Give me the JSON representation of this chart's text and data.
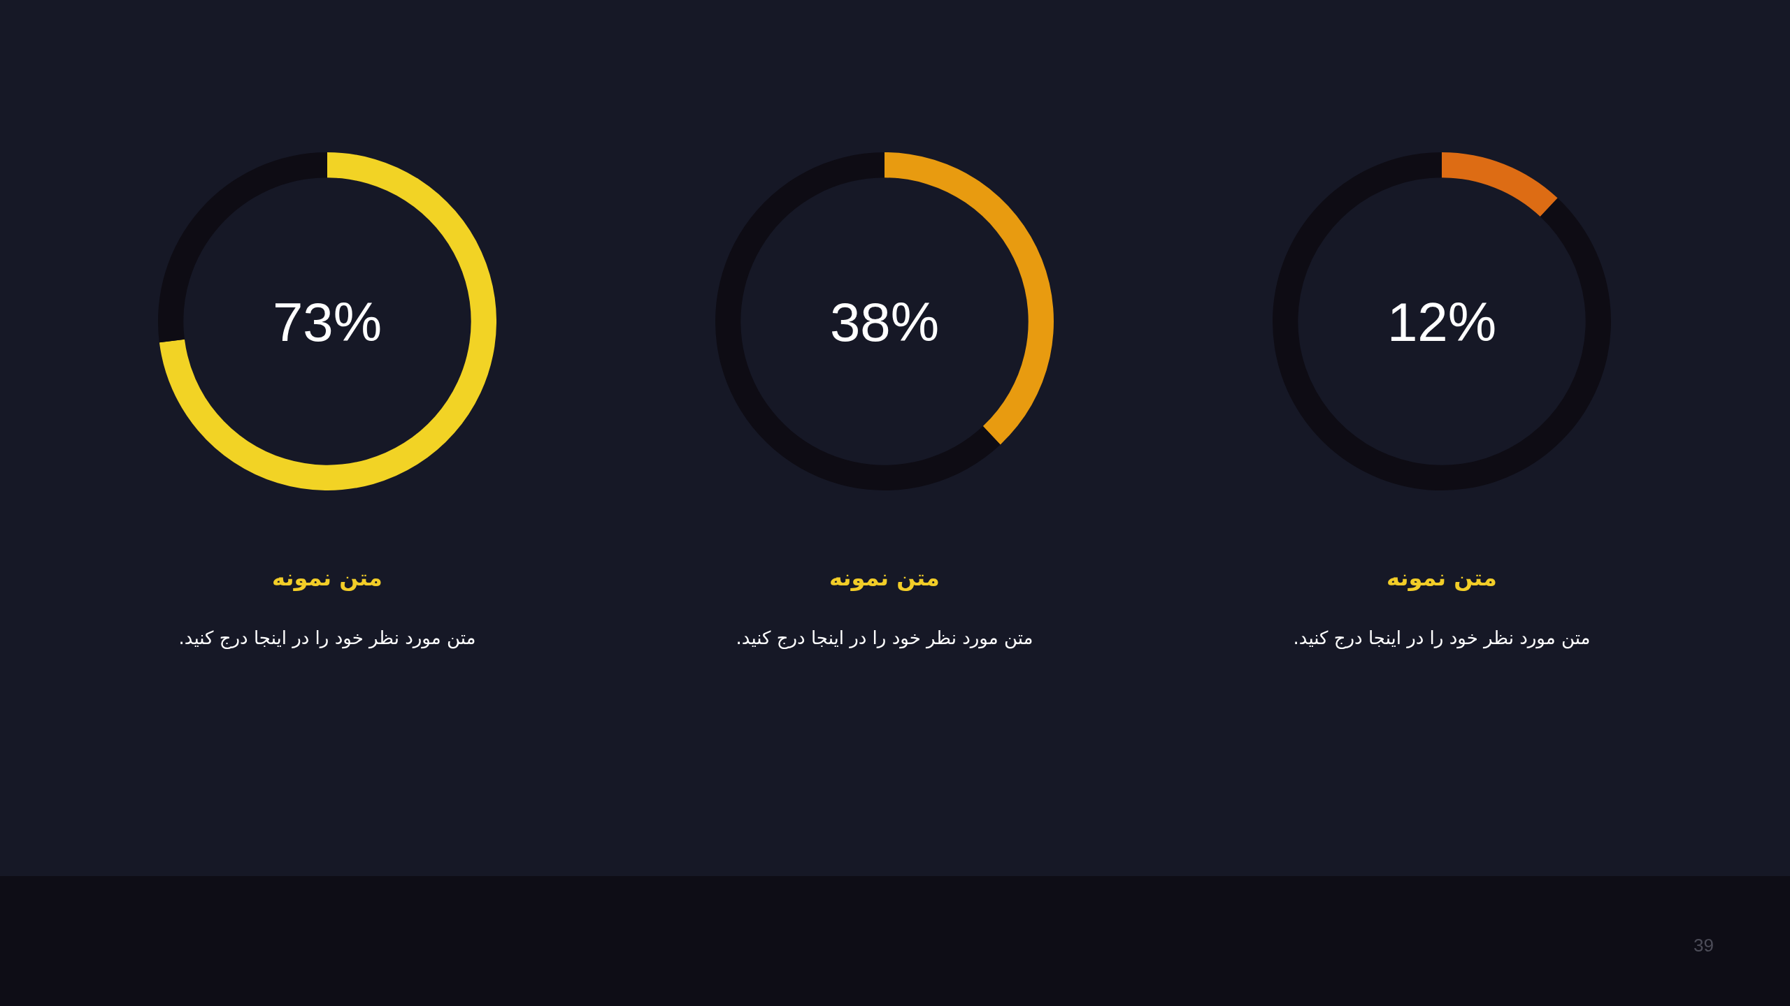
{
  "chart_data": [
    {
      "type": "donut",
      "title": "متن نمونه",
      "subtitle": "متن مورد نظر خود را در اینجا درج کنید.",
      "categories": [
        null,
        null
      ],
      "values": [
        73,
        27
      ],
      "colors": [
        "#f2d325",
        "#0e0c14"
      ],
      "annotations": [
        "73%"
      ],
      "legend": false
    },
    {
      "type": "donut",
      "title": "متن نمونه",
      "subtitle": "متن مورد نظر خود را در اینجا درج کنید.",
      "categories": [
        null,
        null
      ],
      "values": [
        38,
        62
      ],
      "colors": [
        "#e89b10",
        "#0e0c14"
      ],
      "annotations": [
        "38%"
      ],
      "legend": false
    },
    {
      "type": "donut",
      "title": "متن نمونه",
      "subtitle": "متن مورد نظر خود را در اینجا درج کنید.",
      "categories": [
        null,
        null
      ],
      "values": [
        12,
        88
      ],
      "colors": [
        "#dd6c14",
        "#0e0c14"
      ],
      "annotations": [
        "12%"
      ],
      "legend": false
    },
    {
      "type": "other",
      "annotations": [
        "39"
      ]
    }
  ]
}
